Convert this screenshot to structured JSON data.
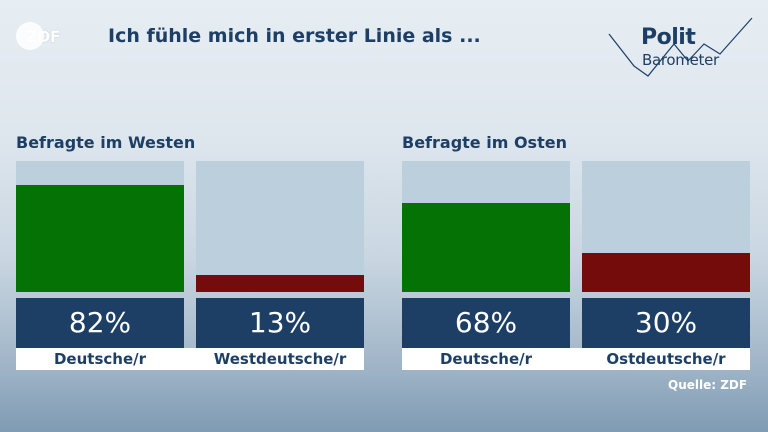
{
  "header": {
    "logo_text": "ZDF",
    "title": "Ich fühle mich in erster Linie als ...",
    "brand_line1": "Polit",
    "brand_line2": "Barometer"
  },
  "colors": {
    "dark_blue": "#1d3f66",
    "bar_background": "#bccfdd",
    "green": "#057205",
    "red": "#740c0c"
  },
  "chart_data": [
    {
      "type": "bar",
      "title": "Befragte im Westen",
      "categories": [
        "Deutsche/r",
        "Westdeutsche/r"
      ],
      "values": [
        82,
        13
      ],
      "value_labels": [
        "82%",
        "13%"
      ],
      "colors": [
        "#057205",
        "#740c0c"
      ],
      "ylim": [
        0,
        100
      ]
    },
    {
      "type": "bar",
      "title": "Befragte im Osten",
      "categories": [
        "Deutsche/r",
        "Ostdeutsche/r"
      ],
      "values": [
        68,
        30
      ],
      "value_labels": [
        "68%",
        "30%"
      ],
      "colors": [
        "#057205",
        "#740c0c"
      ],
      "ylim": [
        0,
        100
      ]
    }
  ],
  "source": "Quelle: ZDF"
}
